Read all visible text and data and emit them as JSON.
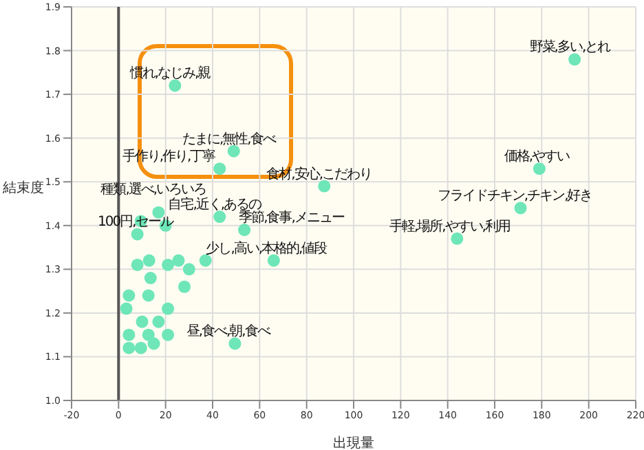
{
  "chart_data": {
    "type": "scatter",
    "xlabel": "出現量",
    "ylabel": "結束度",
    "xlim": [
      -20,
      220
    ],
    "xticks": [
      -20,
      0,
      20,
      40,
      60,
      80,
      100,
      120,
      140,
      160,
      180,
      200,
      220
    ],
    "ylim": [
      1.0,
      1.9
    ],
    "yticks": [
      {
        "value": 1.0,
        "label": "1.0"
      },
      {
        "value": 1.1,
        "label": "1.1"
      },
      {
        "value": 1.2,
        "label": "1.2"
      },
      {
        "value": 1.3,
        "label": "1.3"
      },
      {
        "value": 1.4,
        "label": "1.4"
      },
      {
        "value": 1.5,
        "label": "1.5"
      },
      {
        "value": 1.6,
        "label": "1.6"
      },
      {
        "value": 1.7,
        "label": "1.7"
      },
      {
        "value": 1.8,
        "label": "1.8"
      },
      {
        "value": 1.9,
        "label": "1.9"
      }
    ],
    "grid": true,
    "marker": "circle",
    "legend": false,
    "ref_lines": [
      {
        "axis": "x",
        "value": 0,
        "color": "#555555"
      }
    ],
    "series": [
      {
        "color": "#6ee6b8",
        "x": [
          24,
          49,
          43,
          87.5,
          194,
          179,
          171,
          144,
          43,
          53.5,
          66,
          37,
          49.5,
          17,
          9.5,
          20,
          8,
          8,
          13,
          21,
          25.5,
          30,
          13.6,
          28,
          12.7,
          4.4,
          3.3,
          21,
          10,
          17,
          4.4,
          12.7,
          21,
          4.4,
          9.5,
          15
        ],
        "values": [
          1.72,
          1.57,
          1.53,
          1.49,
          1.78,
          1.53,
          1.44,
          1.37,
          1.42,
          1.39,
          1.32,
          1.32,
          1.13,
          1.43,
          1.41,
          1.4,
          1.38,
          1.31,
          1.32,
          1.31,
          1.32,
          1.3,
          1.28,
          1.26,
          1.24,
          1.24,
          1.21,
          1.21,
          1.18,
          1.18,
          1.15,
          1.15,
          1.15,
          1.12,
          1.12,
          1.13
        ]
      }
    ],
    "annotations": [
      {
        "text": "慣れ,なじみ,親",
        "x": 24,
        "y": 1.72
      },
      {
        "text": "たまに,無性,食べ",
        "x": 49,
        "y": 1.57
      },
      {
        "text": "手作り,作り,丁寧",
        "x": 43,
        "y": 1.53
      },
      {
        "text": "食材,安心,こだわり",
        "x": 87.5,
        "y": 1.49
      },
      {
        "text": "野菜,多い,とれ",
        "x": 194,
        "y": 1.78
      },
      {
        "text": "価格,やすい",
        "x": 179,
        "y": 1.53
      },
      {
        "text": "フライドチキン,チキン,好き",
        "x": 171,
        "y": 1.44
      },
      {
        "text": "手軽,場所,やすい,利用",
        "x": 144,
        "y": 1.37
      },
      {
        "text": "自宅,近く,あるの",
        "x": 43,
        "y": 1.42
      },
      {
        "text": "季節,食事,メニュー",
        "x": 53.5,
        "y": 1.39
      },
      {
        "text": "少し,高い,本格的,値段",
        "x": 66,
        "y": 1.32
      },
      {
        "text": "昼,食べ,朝,食べ",
        "x": 49.5,
        "y": 1.13
      },
      {
        "text": "種類,選べ,いろいろ",
        "x": 17,
        "y": 1.43
      },
      {
        "text": "100円,セール",
        "x": 8,
        "y": 1.38
      }
    ]
  }
}
